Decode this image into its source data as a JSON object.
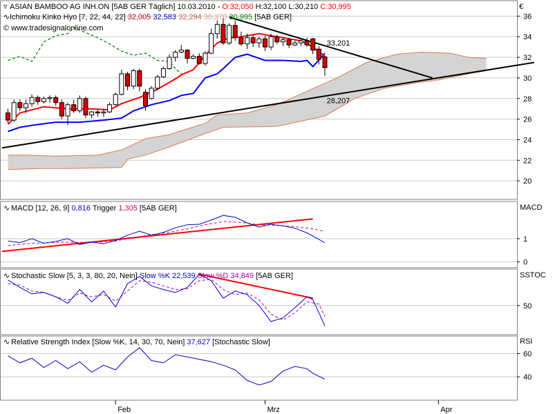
{
  "currency_symbol": "€",
  "colors": {
    "bull_body": "#ffffff",
    "bear_body": "#d40000",
    "tenkan": "#ff0000",
    "kijun": "#0000ff",
    "chikou": "#008000",
    "kumo_fill": "#d4d4d4",
    "kumo_edge": "#e07a50",
    "trend_black": "#000000",
    "trend_red": "#ff0000",
    "macd_line": "#0000cc",
    "macd_trigger": "#cc0077",
    "sto_k": "#0000cc",
    "sto_d": "#aa00aa",
    "rsi_line": "#0000cc",
    "grid": "#c8c8c8"
  },
  "main_panel": {
    "legend": {
      "title": "ASIAN BAMBOO AG  INH.ON [5AB GER  Täglich] 10.03.2010 - ",
      "o": "O:32,050",
      "h": "H:32,100",
      "l": "L:30,210",
      "c": "C:30,995",
      "ich_label": "Ichimoku Kinko Hyo [7, 22, 44, 22] ",
      "ich_v1": "32,005",
      "ich_v2": "32,583",
      "ich_v3": "32,294",
      "ich_v4": "30,370",
      "ich_v5": "30,995",
      "ich_tail": " [5AB GER]",
      "site": "© www.tradesignalonline.com"
    },
    "annotations": [
      {
        "text": "33,201",
        "x": 54,
        "y": 33.4
      },
      {
        "text": "28,207",
        "x": 54,
        "y": 27.8
      }
    ]
  },
  "macd_panel": {
    "legend_prefix": "MACD [12, 26, 9] ",
    "value": "0,816",
    "trigger_label": " Trigger ",
    "trigger_value": "1,305",
    "tail": " [5AB GER]",
    "axis_label": "MACD"
  },
  "stoch_panel": {
    "legend_prefix": "Stochastic Slow [5, 3, 3, 80, 20, Nein] ",
    "k_label": "Slow %K ",
    "k_value": "22,539",
    "d_label": " Slow %D ",
    "d_value": "34,849",
    "tail": " [5AB GER]",
    "axis_label": "SSTOC"
  },
  "rsi_panel": {
    "legend_prefix": "Relative Strength Index [Slow %K, 14, 30, 70, Nein] ",
    "value": "37,627",
    "tail": " [Stochastic Slow]",
    "axis_label": "RSI"
  },
  "x_axis": {
    "labels": [
      {
        "text": "Feb",
        "index": 18
      },
      {
        "text": "Mrz",
        "index": 43
      },
      {
        "text": "Apr",
        "index": 72
      }
    ]
  },
  "chart_data": [
    {
      "type": "candlestick",
      "name": "ASIAN BAMBOO AG INH.ON",
      "y_ticks": [
        20,
        22,
        24,
        26,
        28,
        30,
        32,
        34,
        36
      ],
      "ylim": [
        18.2,
        37.5
      ],
      "candles": [
        [
          26.6,
          27.0,
          25.6,
          25.9
        ],
        [
          25.9,
          27.9,
          25.7,
          27.6
        ],
        [
          27.6,
          27.9,
          26.8,
          27.1
        ],
        [
          27.1,
          27.9,
          26.6,
          27.5
        ],
        [
          27.5,
          28.4,
          27.2,
          28.1
        ],
        [
          28.1,
          28.3,
          27.4,
          27.7
        ],
        [
          27.7,
          28.2,
          27.5,
          28.0
        ],
        [
          28.0,
          28.3,
          27.6,
          28.1
        ],
        [
          28.1,
          28.3,
          27.3,
          27.6
        ],
        [
          27.6,
          27.9,
          26.0,
          26.3
        ],
        [
          26.3,
          27.6,
          25.4,
          27.4
        ],
        [
          27.4,
          27.9,
          26.6,
          26.8
        ],
        [
          26.8,
          28.3,
          26.6,
          28.0
        ],
        [
          28.0,
          28.2,
          26.1,
          26.4
        ],
        [
          26.4,
          26.8,
          26.1,
          26.7
        ],
        [
          26.7,
          26.9,
          26.2,
          26.6
        ],
        [
          26.6,
          27.0,
          26.2,
          26.7
        ],
        [
          26.7,
          27.6,
          26.6,
          27.4
        ],
        [
          27.4,
          28.6,
          27.3,
          28.4
        ],
        [
          28.4,
          30.8,
          28.3,
          30.4
        ],
        [
          30.4,
          30.6,
          28.8,
          29.2
        ],
        [
          29.2,
          30.9,
          28.9,
          30.7
        ],
        [
          30.7,
          30.9,
          28.7,
          29.2
        ],
        [
          28.6,
          28.9,
          26.8,
          27.3
        ],
        [
          28.0,
          29.2,
          27.9,
          29.0
        ],
        [
          29.0,
          30.3,
          28.8,
          30.1
        ],
        [
          30.1,
          31.1,
          30.0,
          30.9
        ],
        [
          30.9,
          32.3,
          30.8,
          32.0
        ],
        [
          32.0,
          32.7,
          31.6,
          32.5
        ],
        [
          32.5,
          33.2,
          32.4,
          32.7
        ],
        [
          32.7,
          32.8,
          31.4,
          31.9
        ],
        [
          31.9,
          32.3,
          31.8,
          32.1
        ],
        [
          32.1,
          32.4,
          31.3,
          31.4
        ],
        [
          31.4,
          32.6,
          31.2,
          32.4
        ],
        [
          32.4,
          34.8,
          32.3,
          34.3
        ],
        [
          34.3,
          35.6,
          33.8,
          35.2
        ],
        [
          35.2,
          35.8,
          33.2,
          33.4
        ],
        [
          33.4,
          35.3,
          33.2,
          35.1
        ],
        [
          35.1,
          35.6,
          33.6,
          33.9
        ],
        [
          33.9,
          34.5,
          33.1,
          33.3
        ],
        [
          33.3,
          34.3,
          32.8,
          33.9
        ],
        [
          33.9,
          34.2,
          33.0,
          33.4
        ],
        [
          33.4,
          34.0,
          32.9,
          33.8
        ],
        [
          33.8,
          34.1,
          32.6,
          33.0
        ],
        [
          33.0,
          34.3,
          32.7,
          34.0
        ],
        [
          34.0,
          34.2,
          33.3,
          33.5
        ],
        [
          33.5,
          33.9,
          33.1,
          33.7
        ],
        [
          33.7,
          33.9,
          32.9,
          33.2
        ],
        [
          33.2,
          33.6,
          33.1,
          33.4
        ],
        [
          33.4,
          33.8,
          33.1,
          33.6
        ],
        [
          33.6,
          33.9,
          33.0,
          33.2
        ],
        [
          33.8,
          33.9,
          32.3,
          32.7
        ],
        [
          32.8,
          33.1,
          31.3,
          31.8
        ],
        [
          32.05,
          32.1,
          30.21,
          30.995
        ]
      ],
      "tenkan": [
        [
          0,
          25.5
        ],
        [
          2,
          26.6
        ],
        [
          6,
          27.2
        ],
        [
          10,
          27.0
        ],
        [
          14,
          27.0
        ],
        [
          17,
          26.9
        ],
        [
          19,
          27.5
        ],
        [
          22,
          28.1
        ],
        [
          25,
          28.9
        ],
        [
          28,
          29.9
        ],
        [
          29,
          30.3
        ],
        [
          31,
          30.8
        ],
        [
          33,
          32.2
        ],
        [
          35,
          33.4
        ],
        [
          37,
          33.9
        ],
        [
          39,
          34.0
        ],
        [
          42,
          34.3
        ],
        [
          46,
          33.9
        ],
        [
          49,
          33.6
        ],
        [
          51,
          33.0
        ],
        [
          53,
          32.1
        ]
      ],
      "kijun": [
        [
          0,
          24.8
        ],
        [
          2,
          25.2
        ],
        [
          4,
          25.4
        ],
        [
          8,
          25.7
        ],
        [
          12,
          25.7
        ],
        [
          16,
          25.9
        ],
        [
          19,
          26.1
        ],
        [
          21,
          26.8
        ],
        [
          24,
          27.4
        ],
        [
          27,
          27.8
        ],
        [
          29,
          28.3
        ],
        [
          31,
          28.5
        ],
        [
          33,
          30.0
        ],
        [
          35,
          30.4
        ],
        [
          36,
          30.9
        ],
        [
          38,
          32.0
        ],
        [
          40,
          32.3
        ],
        [
          43,
          31.7
        ],
        [
          46,
          31.7
        ],
        [
          49,
          31.6
        ],
        [
          50,
          31.7
        ],
        [
          51,
          31.1
        ],
        [
          53,
          32.4
        ]
      ],
      "chikou": [
        [
          0,
          31.7
        ],
        [
          2,
          32.1
        ],
        [
          4,
          31.6
        ],
        [
          6,
          33.5
        ],
        [
          8,
          34.1
        ],
        [
          10,
          34.3
        ],
        [
          11,
          34.9
        ],
        [
          13,
          34.4
        ],
        [
          15,
          33.9
        ],
        [
          17,
          33.3
        ],
        [
          19,
          32.6
        ],
        [
          21,
          32.2
        ],
        [
          23,
          32.4
        ],
        [
          25,
          31.7
        ],
        [
          27,
          31.6
        ],
        [
          28,
          30.9
        ],
        [
          29,
          30.4
        ]
      ],
      "kumo_upper": [
        [
          0,
          22.5
        ],
        [
          3,
          22.5
        ],
        [
          8,
          22.4
        ],
        [
          15,
          22.5
        ],
        [
          19,
          23.0
        ],
        [
          23,
          24.1
        ],
        [
          27,
          24.5
        ],
        [
          33,
          25.6
        ],
        [
          35,
          26.4
        ],
        [
          40,
          26.6
        ],
        [
          45,
          27.4
        ],
        [
          50,
          28.7
        ],
        [
          55,
          30.0
        ],
        [
          60,
          31.5
        ],
        [
          65,
          32.3
        ],
        [
          69,
          32.5
        ],
        [
          74,
          32.4
        ],
        [
          77,
          32.0
        ],
        [
          80,
          31.9
        ]
      ],
      "kumo_lower": [
        [
          0,
          21.1
        ],
        [
          5,
          21.2
        ],
        [
          10,
          21.2
        ],
        [
          19,
          21.3
        ],
        [
          20,
          22.1
        ],
        [
          23,
          22.5
        ],
        [
          27,
          23.3
        ],
        [
          33,
          24.6
        ],
        [
          36,
          25.2
        ],
        [
          45,
          25.3
        ],
        [
          53,
          26.3
        ],
        [
          58,
          28.0
        ],
        [
          63,
          29.0
        ],
        [
          68,
          29.5
        ],
        [
          72,
          29.8
        ],
        [
          77,
          30.4
        ],
        [
          80,
          30.7
        ]
      ],
      "trend_black": [
        [
          [
            -1,
            23.2
          ],
          [
            88,
            31.5
          ]
        ],
        [
          [
            37,
            35.9
          ],
          [
            71,
            30.0
          ]
        ]
      ]
    },
    {
      "type": "line",
      "name": "MACD",
      "y_ticks": [
        0,
        1
      ],
      "ylim": [
        -0.25,
        2.6
      ],
      "macd": [
        [
          0,
          0.9
        ],
        [
          2,
          0.83
        ],
        [
          4,
          1.0
        ],
        [
          6,
          0.8
        ],
        [
          8,
          0.88
        ],
        [
          10,
          1.0
        ],
        [
          12,
          0.75
        ],
        [
          14,
          0.85
        ],
        [
          16,
          0.78
        ],
        [
          18,
          0.92
        ],
        [
          20,
          1.15
        ],
        [
          22,
          1.32
        ],
        [
          24,
          1.15
        ],
        [
          26,
          1.27
        ],
        [
          28,
          1.47
        ],
        [
          30,
          1.6
        ],
        [
          32,
          1.62
        ],
        [
          34,
          1.8
        ],
        [
          36,
          2.0
        ],
        [
          38,
          1.92
        ],
        [
          40,
          1.68
        ],
        [
          42,
          1.5
        ],
        [
          44,
          1.62
        ],
        [
          46,
          1.55
        ],
        [
          48,
          1.45
        ],
        [
          50,
          1.25
        ],
        [
          52,
          0.97
        ],
        [
          53,
          0.82
        ]
      ],
      "trigger": [
        [
          0,
          0.7
        ],
        [
          3,
          0.78
        ],
        [
          6,
          0.82
        ],
        [
          9,
          0.85
        ],
        [
          12,
          0.84
        ],
        [
          15,
          0.85
        ],
        [
          18,
          0.9
        ],
        [
          21,
          1.05
        ],
        [
          24,
          1.17
        ],
        [
          27,
          1.28
        ],
        [
          30,
          1.42
        ],
        [
          33,
          1.6
        ],
        [
          36,
          1.74
        ],
        [
          39,
          1.7
        ],
        [
          42,
          1.6
        ],
        [
          45,
          1.57
        ],
        [
          48,
          1.52
        ],
        [
          51,
          1.42
        ],
        [
          53,
          1.31
        ]
      ],
      "trend_red": [
        [
          -1,
          0.45
        ],
        [
          51,
          1.85
        ]
      ]
    },
    {
      "type": "line",
      "name": "Stochastic Slow",
      "y_ticks": [
        50
      ],
      "ylim": [
        10,
        100
      ],
      "k": [
        [
          0,
          85
        ],
        [
          2,
          75
        ],
        [
          4,
          66
        ],
        [
          6,
          68
        ],
        [
          8,
          62
        ],
        [
          10,
          53
        ],
        [
          12,
          72
        ],
        [
          14,
          55
        ],
        [
          16,
          70
        ],
        [
          18,
          48
        ],
        [
          20,
          80
        ],
        [
          22,
          90
        ],
        [
          24,
          77
        ],
        [
          26,
          72
        ],
        [
          28,
          68
        ],
        [
          30,
          75
        ],
        [
          32,
          93
        ],
        [
          34,
          84
        ],
        [
          36,
          60
        ],
        [
          38,
          70
        ],
        [
          40,
          65
        ],
        [
          42,
          50
        ],
        [
          44,
          28
        ],
        [
          46,
          33
        ],
        [
          48,
          47
        ],
        [
          50,
          62
        ],
        [
          51,
          58
        ],
        [
          53,
          22
        ]
      ],
      "d": [
        [
          0,
          80
        ],
        [
          2,
          78
        ],
        [
          4,
          70
        ],
        [
          6,
          68
        ],
        [
          8,
          62
        ],
        [
          10,
          57
        ],
        [
          12,
          67
        ],
        [
          14,
          62
        ],
        [
          16,
          65
        ],
        [
          18,
          56
        ],
        [
          20,
          70
        ],
        [
          22,
          84
        ],
        [
          24,
          82
        ],
        [
          26,
          77
        ],
        [
          28,
          72
        ],
        [
          30,
          73
        ],
        [
          32,
          84
        ],
        [
          34,
          86
        ],
        [
          36,
          72
        ],
        [
          38,
          65
        ],
        [
          40,
          67
        ],
        [
          42,
          58
        ],
        [
          44,
          38
        ],
        [
          46,
          30
        ],
        [
          48,
          40
        ],
        [
          50,
          55
        ],
        [
          52,
          52
        ],
        [
          53,
          35
        ]
      ],
      "trend_red": [
        [
          32,
          93
        ],
        [
          51,
          60
        ]
      ]
    },
    {
      "type": "line",
      "name": "Relative Strength Index",
      "y_ticks": [
        40,
        60
      ],
      "ylim": [
        20,
        75
      ],
      "rsi": [
        [
          0,
          58
        ],
        [
          2,
          52
        ],
        [
          4,
          56
        ],
        [
          6,
          48
        ],
        [
          8,
          54
        ],
        [
          10,
          47
        ],
        [
          12,
          53
        ],
        [
          14,
          44
        ],
        [
          16,
          50
        ],
        [
          18,
          46
        ],
        [
          20,
          57
        ],
        [
          22,
          65
        ],
        [
          24,
          54
        ],
        [
          26,
          52
        ],
        [
          28,
          59
        ],
        [
          30,
          57
        ],
        [
          32,
          55
        ],
        [
          34,
          53
        ],
        [
          36,
          50
        ],
        [
          38,
          46
        ],
        [
          40,
          37
        ],
        [
          42,
          33
        ],
        [
          44,
          36
        ],
        [
          46,
          45
        ],
        [
          48,
          49
        ],
        [
          50,
          47
        ],
        [
          51,
          43
        ],
        [
          53,
          38
        ]
      ]
    }
  ]
}
